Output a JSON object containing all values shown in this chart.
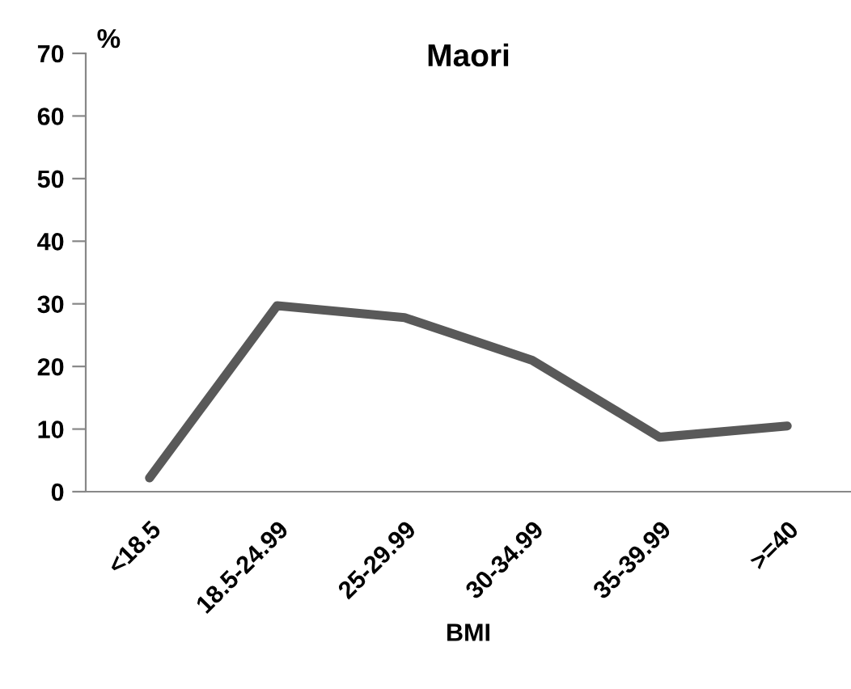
{
  "chart_data": {
    "type": "line",
    "title": "Maori",
    "xlabel": "BMI",
    "ylabel": "%",
    "categories": [
      "<18.5",
      "18.5-24.99",
      "25-29.99",
      "30-34.99",
      "35-39.99",
      ">=40"
    ],
    "series": [
      {
        "color": "#595959",
        "values": [
          2.2,
          29.7,
          27.8,
          21.0,
          8.7,
          10.5
        ]
      }
    ],
    "ylim": [
      0,
      70
    ],
    "yticks": [
      0,
      10,
      20,
      30,
      40,
      50,
      60,
      70
    ],
    "grid": false,
    "legend": false,
    "marker": "none",
    "line_style": "solid"
  }
}
